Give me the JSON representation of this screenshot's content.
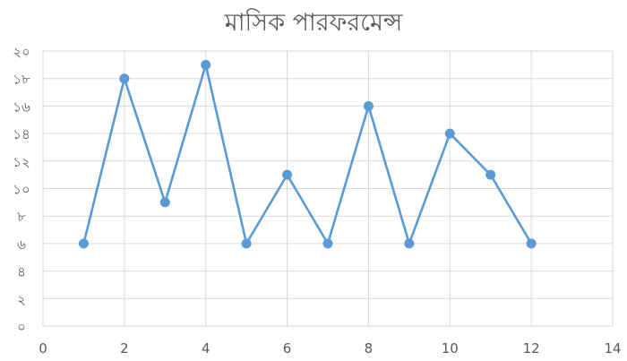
{
  "chart_data": {
    "type": "scatter",
    "mode": "lines+markers",
    "title": "মাসিক পারফরমেন্স",
    "xlabel": "",
    "ylabel": "",
    "xlim": [
      0,
      14
    ],
    "ylim": [
      0,
      20
    ],
    "x_ticks": [
      0,
      2,
      4,
      6,
      8,
      10,
      12,
      14
    ],
    "x_tick_labels": [
      "0",
      "2",
      "4",
      "6",
      "8",
      "10",
      "12",
      "14"
    ],
    "y_ticks": [
      0,
      2,
      4,
      6,
      8,
      10,
      12,
      14,
      16,
      18,
      20
    ],
    "y_tick_labels": [
      "০",
      "২",
      "৪",
      "৬",
      "৮",
      "১০",
      "১২",
      "১৪",
      "১৬",
      "১৮",
      "২০"
    ],
    "grid": true,
    "legend": "none",
    "series": [
      {
        "x": [
          1,
          2,
          3,
          4,
          5,
          6,
          7,
          8,
          9,
          10,
          11,
          12
        ],
        "values": [
          6,
          18,
          9,
          19,
          6,
          11,
          6,
          16,
          6,
          14,
          11,
          6
        ],
        "color": "#5b9bd5"
      }
    ],
    "colors": {
      "line": "#5b9bd5",
      "grid": "#d9d9d9",
      "text": "#595959"
    }
  }
}
